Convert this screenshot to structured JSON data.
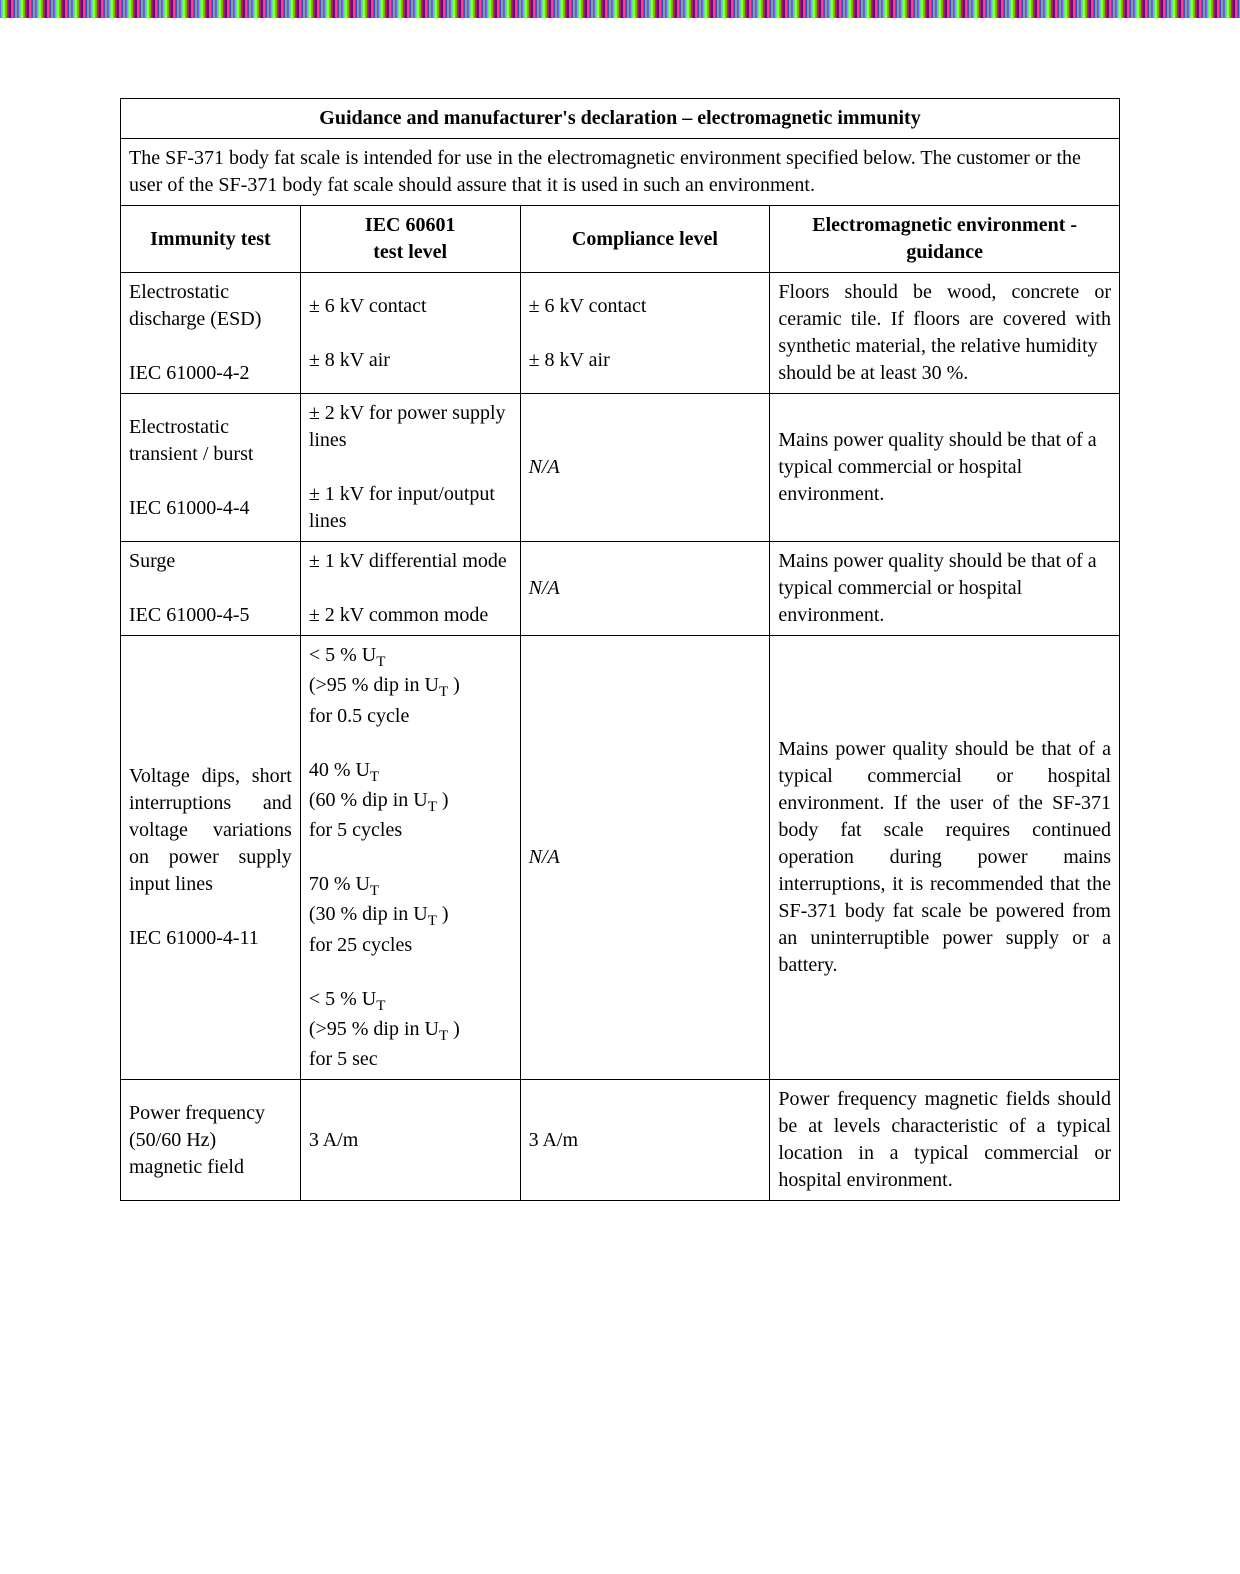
{
  "title": "Guidance and manufacturer's declaration – electromagnetic immunity",
  "intro": "The SF-371 body fat scale   is intended for use in the electromagnetic environment specified below. The customer or the user of the SF-371 body fat scale    should assure that it is used in such an environment.",
  "headers": {
    "immunity": "Immunity test",
    "iec": "IEC 60601",
    "iec2": "test level",
    "compliance": "Compliance level",
    "env1": "Electromagnetic environment -",
    "env2": "guidance"
  },
  "rows": [
    {
      "test_a": "Electrostatic discharge (ESD)",
      "test_b": "IEC 61000-4-2",
      "level_a": "± 6 kV contact",
      "level_b": "± 8 kV air",
      "comp_a": "± 6 kV contact",
      "comp_b": "± 8 kV air",
      "env": "Floors should be wood, concrete or ceramic tile. If floors are covered with synthetic material, the relative humidity",
      "env_tail": "should be at least 30 %."
    },
    {
      "test_a": "Electrostatic transient / burst",
      "test_b": "IEC 61000-4-4",
      "level_a": "± 2 kV for power supply lines",
      "level_b": "± 1 kV for input/output lines",
      "comp": "N/A",
      "env": "Mains power quality should be that of a",
      "env_tail": "typical commercial or hospital environment."
    },
    {
      "test_a": "Surge",
      "test_b": "IEC 61000-4-5",
      "level_a": "±   1 kV differential mode",
      "level_b": "± 2 kV common mode",
      "comp": "N/A",
      "env": "Mains power quality should be that of a",
      "env_tail": "typical commercial or hospital environment."
    },
    {
      "test_a": "Voltage dips, short interruptions and voltage variations on power supply input lines",
      "test_b": "IEC 61000-4-11",
      "dips": {
        "d1a": "< 5 % U",
        "d1b": "(>95 % dip in U",
        "d1c": " )",
        "d1d": "for 0.5 cycle",
        "d2a": "40 % U",
        "d2b": "(60 % dip in U",
        "d2c": " )",
        "d2d": "for 5 cycles",
        "d3a": " 70 % U",
        "d3b": "(30 % dip in U",
        "d3c": " )",
        "d3d": "for 25 cycles",
        "d4a": "< 5 % U",
        "d4b": "(>95 % dip in U",
        "d4c": " )",
        "d4d": "for 5 sec",
        "sub": "T"
      },
      "comp": "N/A",
      "env": "Mains power quality should be that of a typical commercial or hospital environment. If the user of the SF-371 body fat scale  requires continued operation during power mains interruptions, it is recommended that the SF-371 body fat scale  be powered from an uninterruptible power supply or a battery."
    },
    {
      "test_a": "Power frequency (50/60 Hz) magnetic field",
      "level": "3 A/m",
      "comp": "3 A/m",
      "env": "Power frequency magnetic fields should be at levels characteristic of a typical location in a typical commercial or hospital environment."
    }
  ]
}
